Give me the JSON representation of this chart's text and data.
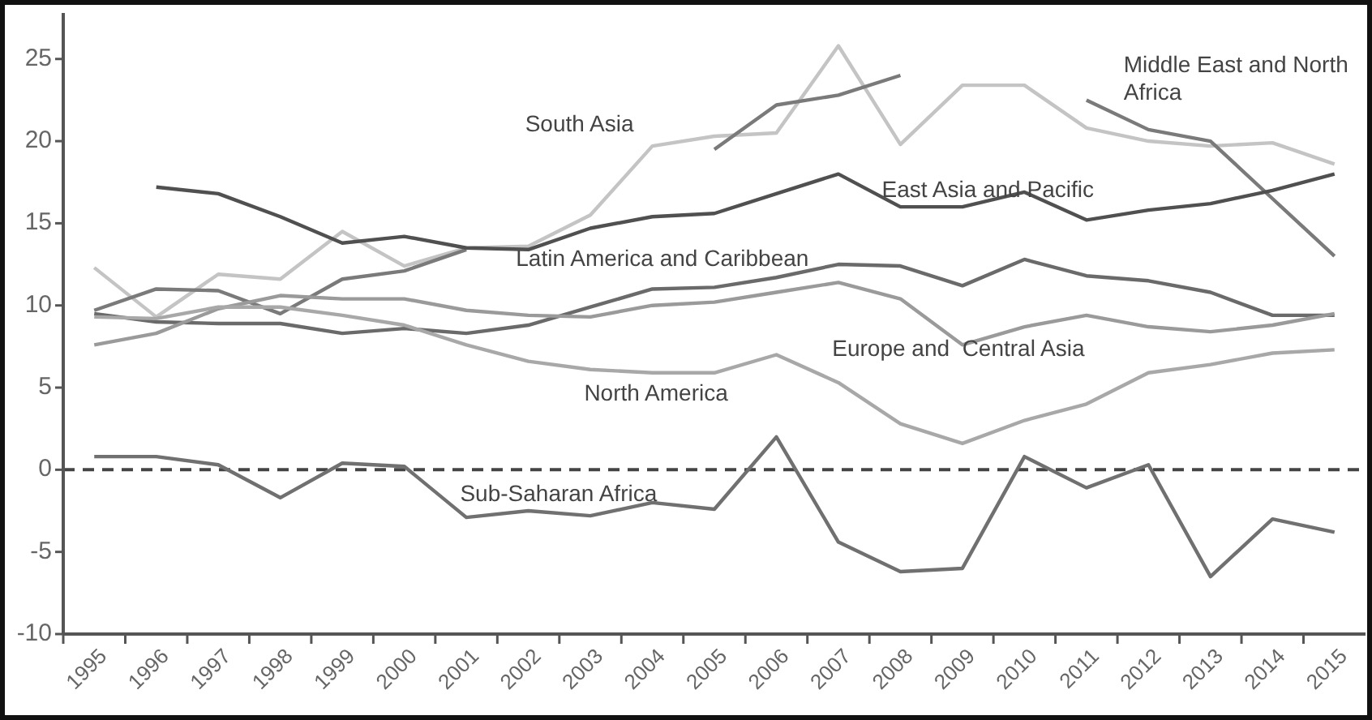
{
  "chart_data": {
    "type": "line",
    "categories": [
      "1995",
      "1996",
      "1997",
      "1998",
      "1999",
      "2000",
      "2001",
      "2002",
      "2003",
      "2004",
      "2005",
      "2006",
      "2007",
      "2008",
      "2009",
      "2010",
      "2011",
      "2012",
      "2013",
      "2014",
      "2015"
    ],
    "ylim": [
      -10,
      27.8
    ],
    "yticks": [
      -10,
      -5,
      0,
      5,
      10,
      15,
      20,
      25
    ],
    "grid": false,
    "marker": "none",
    "line_style": "solid",
    "ref_lines": [
      {
        "axis": "y",
        "value": 0,
        "line_style": "dashed",
        "color": "#444444"
      }
    ],
    "series": [
      {
        "name": "South Asia",
        "color": "#c4c4c4",
        "values": [
          12.3,
          9.3,
          11.9,
          11.6,
          14.5,
          12.4,
          13.5,
          13.6,
          15.5,
          19.7,
          20.3,
          20.5,
          25.8,
          19.8,
          23.4,
          23.4,
          20.8,
          20.0,
          19.7,
          19.9,
          18.6
        ]
      },
      {
        "name": "Middle East and North Africa",
        "color": "#7a7a7a",
        "values": [
          9.7,
          11.0,
          10.9,
          9.5,
          11.6,
          12.1,
          13.4,
          null,
          null,
          null,
          19.5,
          22.2,
          22.8,
          24.0,
          null,
          null,
          22.5,
          20.7,
          20.0,
          16.5,
          13.0
        ]
      },
      {
        "name": "East Asia and Pacific",
        "color": "#505050",
        "values": [
          null,
          17.2,
          16.8,
          15.4,
          13.8,
          14.2,
          13.5,
          13.4,
          14.7,
          15.4,
          15.6,
          16.8,
          18.0,
          16.0,
          16.0,
          16.9,
          15.2,
          15.8,
          16.2,
          17.0,
          18.0
        ]
      },
      {
        "name": "Latin America and Caribbean",
        "color": "#6a6a6a",
        "values": [
          9.5,
          9.0,
          8.9,
          8.9,
          8.3,
          8.6,
          8.3,
          8.8,
          9.9,
          11.0,
          11.1,
          11.7,
          12.5,
          12.4,
          11.2,
          12.8,
          11.8,
          11.5,
          10.8,
          9.4,
          9.4
        ]
      },
      {
        "name": "Europe and  Central Asia",
        "color": "#9a9a9a",
        "values": [
          7.6,
          8.3,
          9.8,
          10.6,
          10.4,
          10.4,
          9.7,
          9.4,
          9.3,
          10.0,
          10.2,
          10.8,
          11.4,
          10.4,
          7.6,
          8.7,
          9.4,
          8.7,
          8.4,
          8.8,
          9.5
        ]
      },
      {
        "name": "North America",
        "color": "#a8a8a8",
        "values": [
          9.3,
          9.2,
          9.9,
          9.9,
          9.4,
          8.8,
          7.6,
          6.6,
          6.1,
          5.9,
          5.9,
          7.0,
          5.3,
          2.8,
          1.6,
          3.0,
          4.0,
          5.9,
          6.4,
          7.1,
          7.3
        ]
      },
      {
        "name": "Sub-Saharan Africa",
        "color": "#707070",
        "values": [
          0.8,
          0.8,
          0.3,
          -1.7,
          0.4,
          0.2,
          -2.9,
          -2.5,
          -2.8,
          -2.0,
          -2.4,
          2.0,
          -4.4,
          -6.2,
          -6.0,
          0.8,
          -1.1,
          0.3,
          -6.5,
          -3.0,
          -3.8
        ]
      }
    ]
  }
}
